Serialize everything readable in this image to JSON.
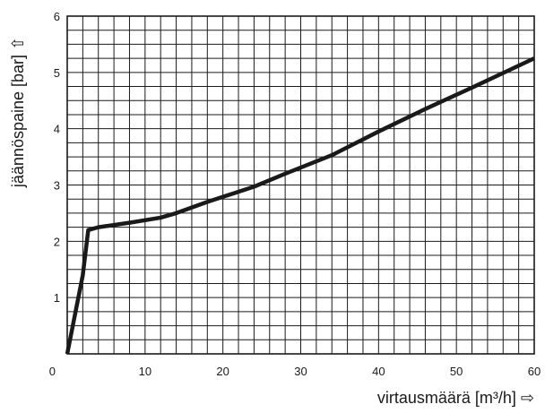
{
  "chart_data": {
    "type": "line",
    "xlabel": "virtausmäärä [m³/h] ⇨",
    "ylabel": "jäännöspaine [bar] ⇧",
    "xlim": [
      0,
      60
    ],
    "ylim": [
      0,
      6
    ],
    "x_ticks": [
      "0",
      "10",
      "20",
      "30",
      "40",
      "50",
      "60"
    ],
    "y_ticks": [
      "1",
      "2",
      "3",
      "4",
      "5",
      "6"
    ],
    "grid": true,
    "grid_x_step": 2,
    "grid_y_step": 0.25,
    "colors": {
      "line": "#1a1a1a",
      "grid": "#1a1a1a",
      "text": "#1a1a1a"
    },
    "series": [
      {
        "x": [
          0,
          2,
          2.7,
          4,
          8,
          12,
          14,
          18,
          24,
          28,
          34,
          40,
          46,
          52,
          60
        ],
        "y": [
          0,
          1.4,
          2.2,
          2.25,
          2.33,
          2.42,
          2.5,
          2.7,
          2.97,
          3.2,
          3.53,
          3.95,
          4.35,
          4.73,
          5.25
        ]
      }
    ]
  }
}
